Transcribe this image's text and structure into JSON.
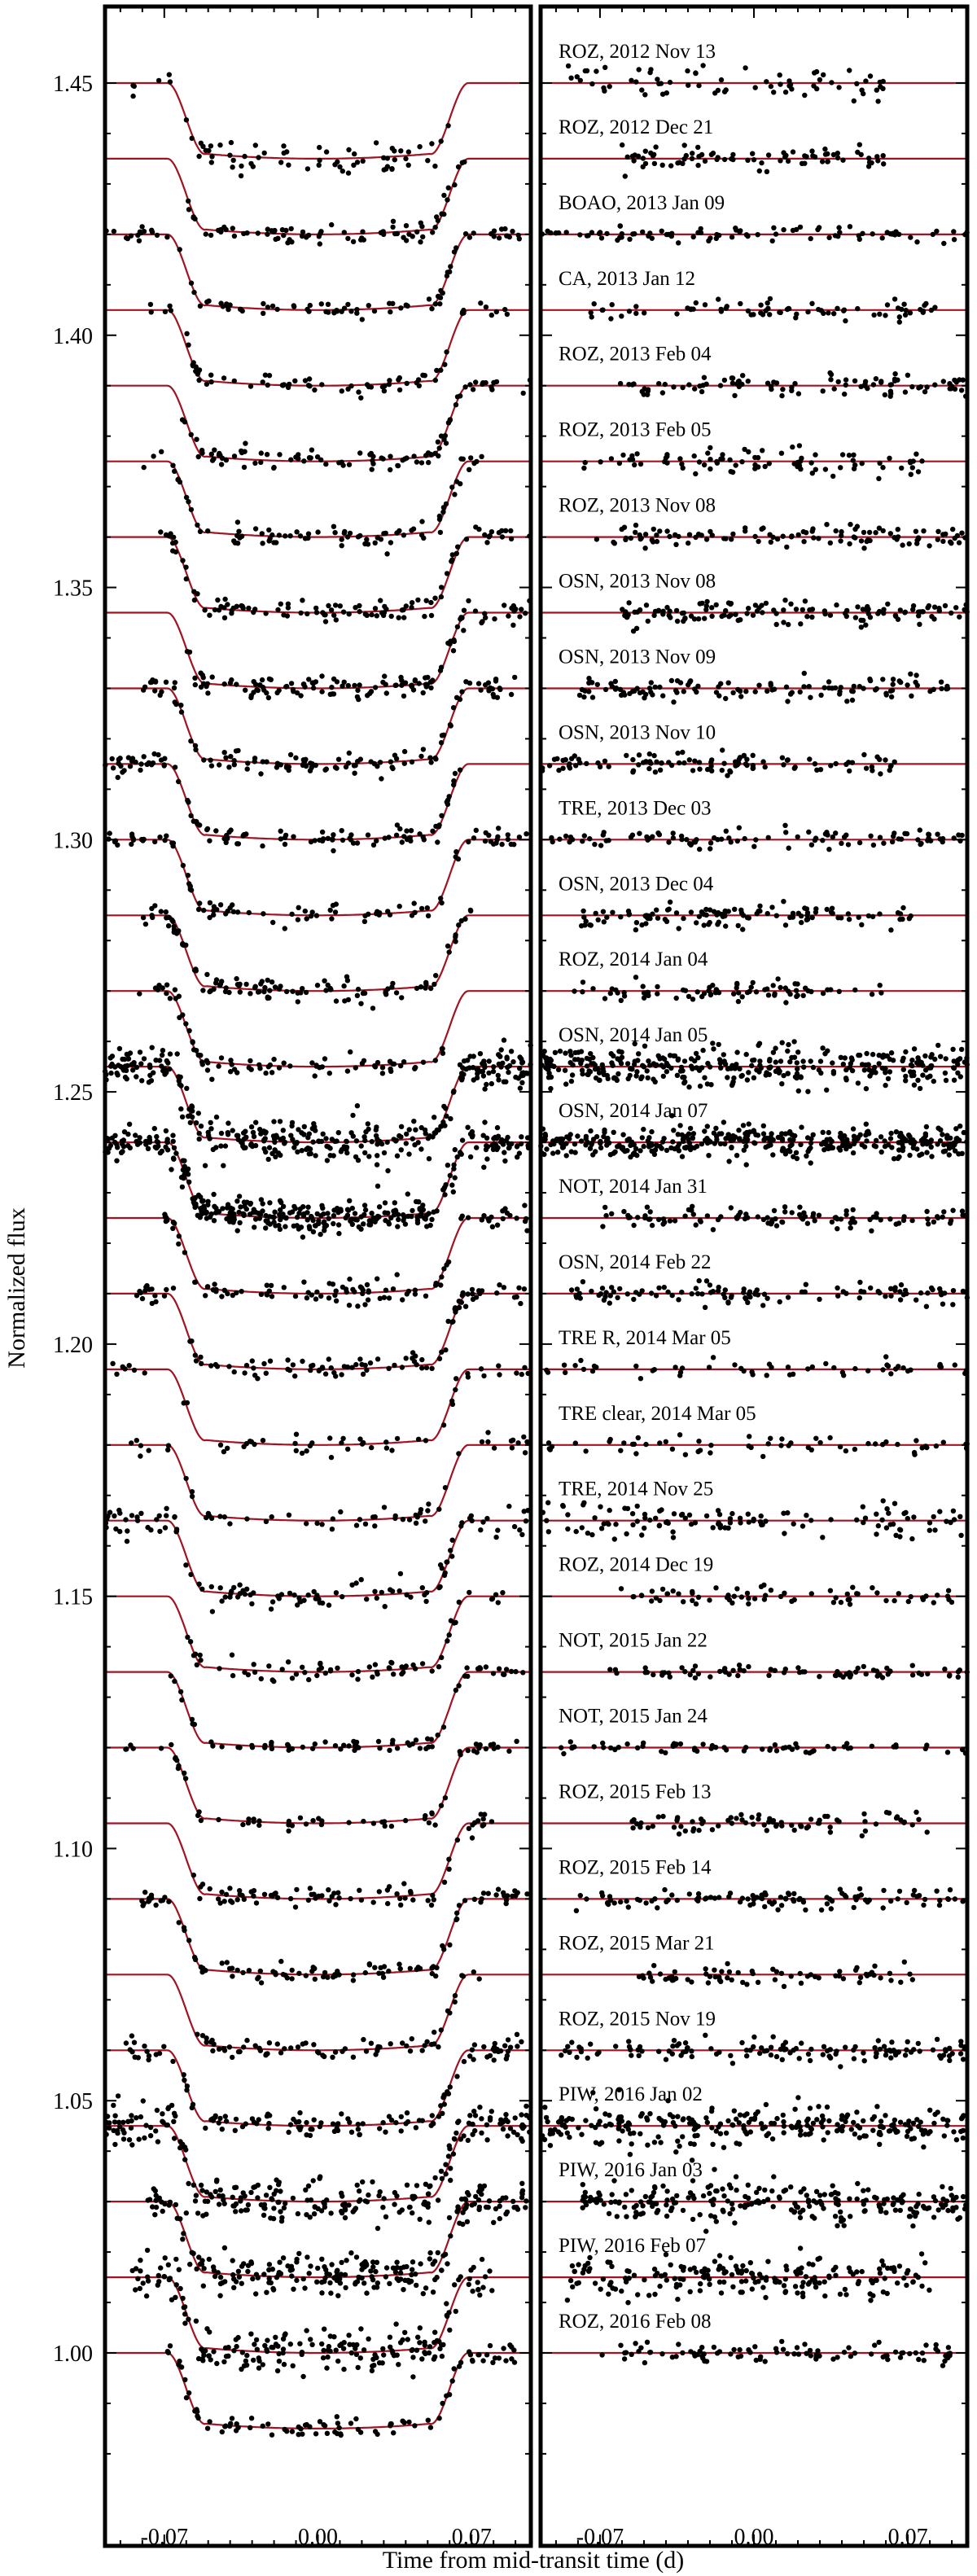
{
  "chart_data": {
    "type": "scatter",
    "ylabel": "Normalized flux",
    "xlabel": "Time from mid-transit time (d)",
    "xlim": [
      -0.097,
      0.097
    ],
    "ylim": [
      0.9755,
      1.4625
    ],
    "yticks": [
      1.0,
      1.05,
      1.1,
      1.15,
      1.2,
      1.25,
      1.3,
      1.35,
      1.4,
      1.45
    ],
    "ytick_labels": [
      "1.00",
      "1.05",
      "1.10",
      "1.15",
      "1.20",
      "1.25",
      "1.30",
      "1.35",
      "1.40",
      "1.45"
    ],
    "xticks": [
      -0.07,
      0.0,
      0.07
    ],
    "xtick_labels": [
      "-0.07",
      "0.00",
      "0.07"
    ],
    "transit": {
      "depth": 0.015,
      "t1": -0.0685,
      "t2": -0.0515,
      "t3": 0.0515,
      "t4": 0.0685
    },
    "model_color": "#a01422",
    "point_color": "#000000",
    "panels": [
      "light curves",
      "residuals"
    ],
    "light_curves": [
      {
        "label": "ROZ, 2012 Nov 13",
        "baseline": 1.45,
        "range": [
          -0.085,
          0.06
        ],
        "n": 70,
        "noise": 0.0016
      },
      {
        "label": "ROZ, 2012 Dec 21",
        "baseline": 1.435,
        "range": [
          -0.06,
          0.067
        ],
        "n": 80,
        "noise": 0.001
      },
      {
        "label": "BOAO, 2013 Jan 09",
        "baseline": 1.42,
        "range": [
          -0.097,
          0.097
        ],
        "n": 90,
        "noise": 0.0007
      },
      {
        "label": "CA, 2013 Jan 12",
        "baseline": 1.405,
        "range": [
          -0.077,
          0.087
        ],
        "n": 75,
        "noise": 0.0009
      },
      {
        "label": "ROZ, 2013 Feb 04",
        "baseline": 1.39,
        "range": [
          -0.062,
          0.097
        ],
        "n": 95,
        "noise": 0.001
      },
      {
        "label": "ROZ, 2013 Feb 05",
        "baseline": 1.375,
        "range": [
          -0.08,
          0.078
        ],
        "n": 85,
        "noise": 0.0013
      },
      {
        "label": "ROZ, 2013 Nov 08",
        "baseline": 1.36,
        "range": [
          -0.072,
          0.097
        ],
        "n": 110,
        "noise": 0.0011
      },
      {
        "label": "OSN, 2013 Nov 08",
        "baseline": 1.345,
        "range": [
          -0.06,
          0.097
        ],
        "n": 130,
        "noise": 0.0011
      },
      {
        "label": "OSN, 2013 Nov 09",
        "baseline": 1.33,
        "range": [
          -0.08,
          0.09
        ],
        "n": 120,
        "noise": 0.0011
      },
      {
        "label": "OSN, 2013 Nov 10",
        "baseline": 1.315,
        "range": [
          -0.097,
          0.065
        ],
        "n": 110,
        "noise": 0.0011
      },
      {
        "label": "TRE, 2013 Dec 03",
        "baseline": 1.3,
        "range": [
          -0.097,
          0.097
        ],
        "n": 100,
        "noise": 0.0009
      },
      {
        "label": "OSN, 2013 Dec 04",
        "baseline": 1.285,
        "range": [
          -0.08,
          0.072
        ],
        "n": 115,
        "noise": 0.0011
      },
      {
        "label": "ROZ, 2014 Jan 04",
        "baseline": 1.27,
        "range": [
          -0.082,
          0.06
        ],
        "n": 80,
        "noise": 0.001
      },
      {
        "label": "OSN, 2014 Jan 05",
        "baseline": 1.255,
        "range": [
          -0.097,
          0.097
        ],
        "n": 340,
        "noise": 0.002
      },
      {
        "label": "OSN, 2014 Jan 07",
        "baseline": 1.24,
        "range": [
          -0.097,
          0.097
        ],
        "n": 380,
        "noise": 0.0016
      },
      {
        "label": "NOT, 2014 Jan 31",
        "baseline": 1.225,
        "range": [
          -0.07,
          0.097
        ],
        "n": 110,
        "noise": 0.0011
      },
      {
        "label": "OSN, 2014 Feb 22",
        "baseline": 1.21,
        "range": [
          -0.083,
          0.097
        ],
        "n": 110,
        "noise": 0.001
      },
      {
        "label": "TRE R, 2014 Mar 05",
        "baseline": 1.195,
        "range": [
          -0.097,
          0.097
        ],
        "n": 55,
        "noise": 0.0009
      },
      {
        "label": "TRE clear, 2014 Mar 05",
        "baseline": 1.18,
        "range": [
          -0.097,
          0.097
        ],
        "n": 60,
        "noise": 0.0009
      },
      {
        "label": "TRE, 2014 Nov 25",
        "baseline": 1.165,
        "range": [
          -0.097,
          0.097
        ],
        "n": 120,
        "noise": 0.0016
      },
      {
        "label": "ROZ, 2014 Dec 19",
        "baseline": 1.15,
        "range": [
          -0.062,
          0.09
        ],
        "n": 70,
        "noise": 0.001
      },
      {
        "label": "NOT, 2015 Jan 22",
        "baseline": 1.135,
        "range": [
          -0.07,
          0.097
        ],
        "n": 75,
        "noise": 0.0006
      },
      {
        "label": "NOT, 2015 Jan 24",
        "baseline": 1.12,
        "range": [
          -0.09,
          0.097
        ],
        "n": 65,
        "noise": 0.0006
      },
      {
        "label": "ROZ, 2015 Feb 13",
        "baseline": 1.105,
        "range": [
          -0.058,
          0.08
        ],
        "n": 80,
        "noise": 0.001
      },
      {
        "label": "ROZ, 2015 Feb 14",
        "baseline": 1.09,
        "range": [
          -0.082,
          0.097
        ],
        "n": 110,
        "noise": 0.0009
      },
      {
        "label": "ROZ, 2015 Mar 21",
        "baseline": 1.075,
        "range": [
          -0.055,
          0.075
        ],
        "n": 70,
        "noise": 0.001
      },
      {
        "label": "ROZ, 2015 Nov 19",
        "baseline": 1.06,
        "range": [
          -0.088,
          0.097
        ],
        "n": 130,
        "noise": 0.0012
      },
      {
        "label": "PIW, 2016 Jan 02",
        "baseline": 1.045,
        "range": [
          -0.097,
          0.097
        ],
        "n": 260,
        "noise": 0.002
      },
      {
        "label": "PIW, 2016 Jan 03",
        "baseline": 1.03,
        "range": [
          -0.078,
          0.097
        ],
        "n": 240,
        "noise": 0.002
      },
      {
        "label": "PIW, 2016 Feb 07",
        "baseline": 1.015,
        "range": [
          -0.085,
          0.08
        ],
        "n": 200,
        "noise": 0.002
      },
      {
        "label": "ROZ, 2016 Feb 08",
        "baseline": 1.0,
        "range": [
          -0.07,
          0.09
        ],
        "n": 95,
        "noise": 0.0009
      }
    ]
  }
}
